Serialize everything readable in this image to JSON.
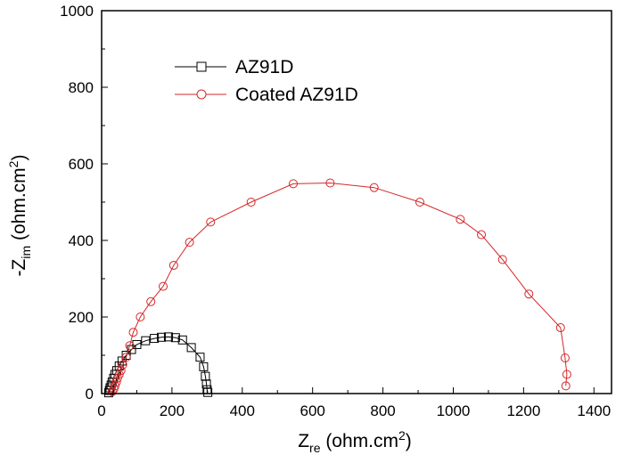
{
  "chart_data": {
    "type": "scatter",
    "xlabel": {
      "main": "Z",
      "sub": "re",
      "unit_prefix": " (ohm.cm",
      "sup": "2",
      "unit_suffix": ")"
    },
    "ylabel": {
      "prefix": "-Z",
      "sub": "im",
      "unit_prefix": " (ohm.cm",
      "sup": "2",
      "unit_suffix": ")"
    },
    "xlim": [
      0,
      1450
    ],
    "ylim": [
      0,
      1000
    ],
    "xticks": [
      0,
      200,
      400,
      600,
      800,
      1000,
      1200,
      1400
    ],
    "yticks": [
      0,
      200,
      400,
      600,
      800,
      1000
    ],
    "legend_position": "top-left",
    "series": [
      {
        "name": "AZ91D",
        "color": "#000000",
        "marker": "square",
        "x": [
          20,
          22,
          24,
          27,
          30,
          34,
          38,
          43,
          50,
          58,
          70,
          85,
          100,
          125,
          150,
          170,
          190,
          210,
          230,
          255,
          280,
          290,
          295,
          298,
          300,
          302
        ],
        "y": [
          2,
          8,
          15,
          22,
          30,
          40,
          50,
          60,
          72,
          85,
          100,
          115,
          128,
          138,
          144,
          147,
          148,
          146,
          140,
          120,
          95,
          70,
          45,
          25,
          10,
          3
        ]
      },
      {
        "name": "Coated AZ91D",
        "color": "#d62728",
        "marker": "circle",
        "x": [
          30,
          35,
          38,
          42,
          45,
          50,
          55,
          60,
          70,
          80,
          90,
          110,
          140,
          175,
          205,
          250,
          310,
          425,
          545,
          650,
          775,
          905,
          1020,
          1080,
          1140,
          1215,
          1305,
          1318,
          1323,
          1320
        ],
        "y": [
          5,
          12,
          20,
          30,
          40,
          50,
          60,
          75,
          95,
          125,
          160,
          200,
          240,
          280,
          335,
          395,
          448,
          500,
          548,
          550,
          538,
          500,
          455,
          415,
          350,
          260,
          172,
          93,
          50,
          20
        ]
      }
    ]
  }
}
